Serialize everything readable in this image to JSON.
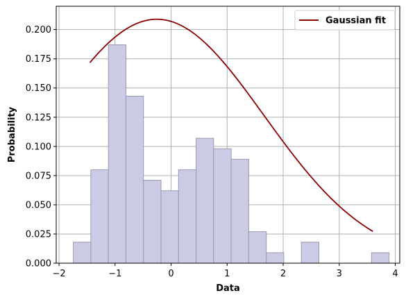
{
  "chart_data": {
    "type": "bar",
    "title": "",
    "xlabel": "Data",
    "ylabel": "Probability",
    "xlim": [
      -2.05,
      4.08
    ],
    "ylim": [
      0,
      0.22
    ],
    "grid": true,
    "legend_position": "top-right",
    "x_ticks": [
      -2,
      -1,
      0,
      1,
      2,
      3,
      4
    ],
    "x_tick_labels": [
      "−2",
      "−1",
      "0",
      "1",
      "2",
      "3",
      "4"
    ],
    "y_ticks": [
      0,
      0.025,
      0.05,
      0.075,
      0.1,
      0.125,
      0.15,
      0.175,
      0.2
    ],
    "y_tick_labels": [
      "0.000",
      "0.025",
      "0.050",
      "0.075",
      "0.100",
      "0.125",
      "0.150",
      "0.175",
      "0.200"
    ],
    "histogram": {
      "bin_edges": [
        -1.745,
        -1.432,
        -1.119,
        -0.806,
        -0.493,
        -0.18,
        0.133,
        0.446,
        0.759,
        1.072,
        1.385,
        1.698,
        2.011,
        2.324,
        2.637,
        2.95,
        3.263,
        3.576,
        3.889
      ],
      "values": [
        0.018,
        0.08,
        0.187,
        0.143,
        0.071,
        0.062,
        0.08,
        0.107,
        0.098,
        0.089,
        0.027,
        0.009,
        0.0,
        0.018,
        0.0,
        0.0,
        0.0,
        0.009
      ],
      "fill_color": "#cbcbe5",
      "edge_color": "#9a9ab2"
    },
    "series": [
      {
        "name": "Gaussian fit",
        "type": "line",
        "color": "#8b0000",
        "mean": -0.255,
        "std": 1.91,
        "x_range": [
          -1.45,
          3.6
        ]
      }
    ]
  }
}
